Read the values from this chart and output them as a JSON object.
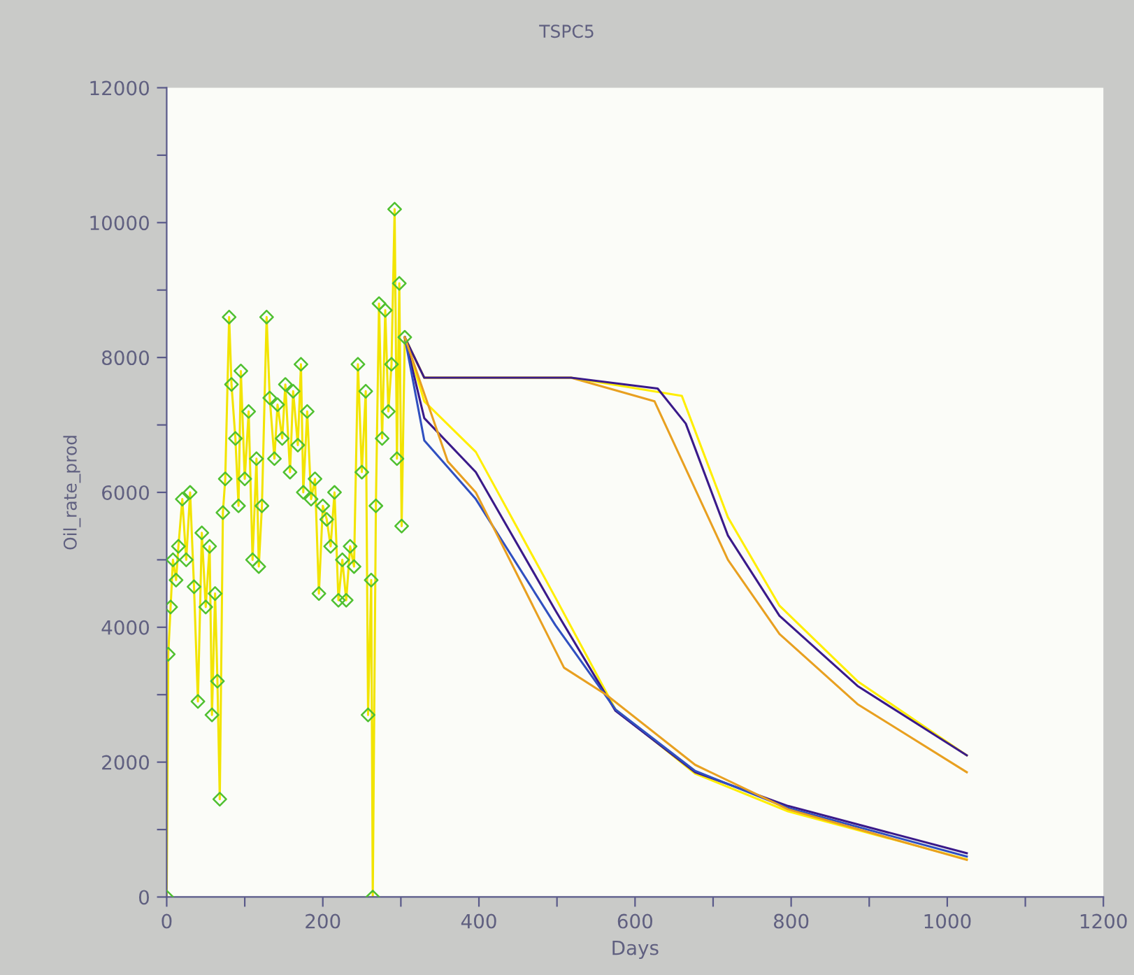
{
  "chart_data": {
    "type": "line",
    "title": "TSPC5",
    "xlabel": "Days",
    "ylabel": "Oil_rate_prod",
    "xlim": [
      0,
      1200
    ],
    "ylim": [
      0,
      12000
    ],
    "xticks": [
      0,
      {
        "value": 100,
        "label": null
      },
      200,
      {
        "value": 300,
        "label": null
      },
      400,
      {
        "value": 500,
        "label": null
      },
      600,
      {
        "value": 700,
        "label": null
      },
      800,
      {
        "value": 900,
        "label": null
      },
      1000,
      {
        "value": 1100,
        "label": null
      },
      1200
    ],
    "yticks": [
      0,
      {
        "value": 1000,
        "label": null
      },
      2000,
      {
        "value": 3000,
        "label": null
      },
      4000,
      {
        "value": 5000,
        "label": null
      },
      6000,
      {
        "value": 7000,
        "label": null
      },
      8000,
      {
        "value": 9000,
        "label": null
      },
      10000,
      {
        "value": 11000,
        "label": null
      },
      12000
    ],
    "series": [
      {
        "color": "#f2e400",
        "x": [
          0,
          2,
          5,
          8,
          12,
          15,
          20,
          25,
          30,
          35,
          40,
          45,
          50,
          55,
          58,
          62,
          65,
          68,
          72,
          75,
          80,
          83,
          88,
          92,
          95,
          100,
          105,
          110,
          115,
          118,
          122,
          128,
          132,
          138,
          142,
          148,
          152,
          158,
          162,
          168,
          172,
          175,
          180,
          185,
          190,
          195,
          200,
          205,
          210,
          215,
          220,
          225,
          230,
          235,
          240,
          245,
          250,
          255,
          258,
          262,
          264,
          268,
          272,
          276,
          280,
          284,
          288,
          292,
          295,
          298,
          301,
          305
        ],
        "values": [
          0,
          3600,
          4300,
          5000,
          4700,
          5200,
          5900,
          5000,
          6000,
          4600,
          2900,
          5400,
          4300,
          5200,
          2700,
          4500,
          3200,
          1450,
          5700,
          6200,
          8600,
          7600,
          6800,
          5800,
          7800,
          6200,
          7200,
          5000,
          6500,
          4900,
          5800,
          8600,
          7400,
          6500,
          7300,
          6800,
          7600,
          6300,
          7500,
          6700,
          7900,
          6000,
          7200,
          5900,
          6200,
          4500,
          5800,
          5600,
          5200,
          6000,
          4400,
          5000,
          4400,
          5200,
          4900,
          7900,
          6300,
          7500,
          2700,
          4700,
          0,
          5800,
          8800,
          6800,
          8700,
          7200,
          7900,
          10200,
          6500,
          9100,
          5500,
          8300
        ]
      },
      {
        "type": "scatter",
        "marker": "diamond",
        "color": "#4fc030",
        "x": [
          0,
          2,
          5,
          8,
          12,
          15,
          20,
          25,
          30,
          35,
          40,
          45,
          50,
          55,
          58,
          62,
          65,
          68,
          72,
          75,
          80,
          83,
          88,
          92,
          95,
          100,
          105,
          110,
          115,
          118,
          122,
          128,
          132,
          138,
          142,
          148,
          152,
          158,
          162,
          168,
          172,
          175,
          180,
          185,
          190,
          195,
          200,
          205,
          210,
          215,
          220,
          225,
          230,
          235,
          240,
          245,
          250,
          255,
          258,
          262,
          264,
          268,
          272,
          276,
          280,
          284,
          288,
          292,
          295,
          298,
          301,
          305
        ],
        "values": [
          0,
          3600,
          4300,
          5000,
          4700,
          5200,
          5900,
          5000,
          6000,
          4600,
          2900,
          5400,
          4300,
          5200,
          2700,
          4500,
          3200,
          1450,
          5700,
          6200,
          8600,
          7600,
          6800,
          5800,
          7800,
          6200,
          7200,
          5000,
          6500,
          4900,
          5800,
          8600,
          7400,
          6500,
          7300,
          6800,
          7600,
          6300,
          7500,
          6700,
          7900,
          6000,
          7200,
          5900,
          6200,
          4500,
          5800,
          5600,
          5200,
          6000,
          4400,
          5000,
          4400,
          5200,
          4900,
          7900,
          6300,
          7500,
          2700,
          4700,
          0,
          5800,
          8800,
          6800,
          8700,
          7200,
          7900,
          10200,
          6500,
          9100,
          5500,
          8300
        ]
      },
      {
        "color": "#e8a020",
        "x": [
          305,
          330,
          518,
          625,
          719,
          785,
          885,
          1025
        ],
        "values": [
          8300,
          7700,
          7700,
          7350,
          5000,
          3900,
          2860,
          1850
        ]
      },
      {
        "color": "#ffee00",
        "x": [
          305,
          330,
          518,
          660,
          719,
          785,
          885,
          1025
        ],
        "values": [
          8300,
          7700,
          7700,
          7430,
          5630,
          4320,
          3200,
          2100
        ]
      },
      {
        "color": "#3a1a8a",
        "x": [
          305,
          330,
          518,
          629,
          665,
          719,
          785,
          885,
          1025
        ],
        "values": [
          8300,
          7700,
          7700,
          7540,
          7020,
          5360,
          4170,
          3130,
          2100
        ]
      },
      {
        "color": "#ffee00",
        "x": [
          305,
          330,
          396,
          498,
          575,
          677,
          796,
          1025
        ],
        "values": [
          8300,
          7350,
          6600,
          4440,
          2780,
          1830,
          1270,
          560
        ]
      },
      {
        "color": "#3a1a8a",
        "x": [
          305,
          330,
          396,
          498,
          575,
          677,
          796,
          1025
        ],
        "values": [
          8300,
          7100,
          6300,
          4250,
          2760,
          1850,
          1350,
          650
        ]
      },
      {
        "color": "#3050c0",
        "x": [
          305,
          330,
          396,
          498,
          575,
          677,
          796,
          1025
        ],
        "values": [
          8300,
          6770,
          5900,
          4030,
          2780,
          1870,
          1320,
          600
        ]
      },
      {
        "color": "#e8a020",
        "x": [
          305,
          360,
          396,
          509,
          563,
          677,
          796,
          1025
        ],
        "values": [
          8300,
          6460,
          6000,
          3400,
          3000,
          1960,
          1300,
          550
        ]
      }
    ]
  }
}
